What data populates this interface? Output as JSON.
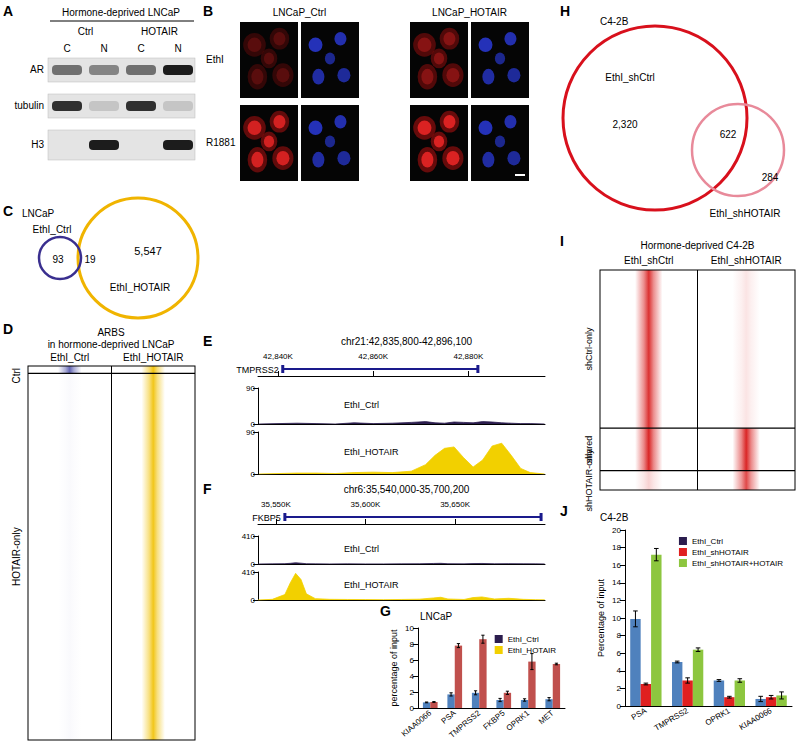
{
  "figure": {
    "panel_labels": [
      "A",
      "B",
      "C",
      "D",
      "E",
      "F",
      "G",
      "H",
      "I",
      "J"
    ],
    "blot": {
      "title": "Hormone-deprived LNCaP",
      "groups": [
        "Ctrl",
        "HOTAIR"
      ],
      "lanes": [
        "C",
        "N",
        "C",
        "N"
      ],
      "rows": [
        {
          "name": "AR",
          "bands": [
            0.55,
            0.45,
            0.55,
            0.95
          ]
        },
        {
          "name": "tubulin",
          "bands": [
            0.85,
            0.15,
            0.85,
            0.15
          ]
        },
        {
          "name": "H3",
          "bands": [
            0,
            0.95,
            0,
            0.95
          ]
        }
      ]
    },
    "microscopy": {
      "columns": [
        "LNCaP_Ctrl",
        "LNCaP_HOTAIR"
      ],
      "rows": [
        "EthI",
        "R1881"
      ]
    },
    "venn_lncap": {
      "title": "LNCaP",
      "sets": [
        "EthI_Ctrl",
        "EthI_HOTAIR"
      ],
      "counts": [
        {
          "value": 93,
          "label": "93"
        },
        {
          "value": 19,
          "label": "19"
        },
        {
          "value": 5547,
          "label": "5,547"
        }
      ]
    },
    "heatmap_lncap": {
      "title": [
        "ARBS",
        "in hormone-deprived LNCaP"
      ],
      "columns": [
        "EthI_Ctrl",
        "EthI_HOTAIR"
      ],
      "sections": [
        "Ctrl",
        "HOTAIR-only"
      ]
    },
    "venn_c42b": {
      "title": "C4-2B",
      "sets": [
        "EthI_shCtrl",
        "EthI_shHOTAIR"
      ],
      "counts": [
        {
          "value": 2320,
          "label": "2,320"
        },
        {
          "value": 622,
          "label": "622"
        },
        {
          "value": 284,
          "label": "284"
        }
      ]
    },
    "heatmap_c42b": {
      "title": "Hormone-deprived C4-2B",
      "columns": [
        "EthI_shCtrl",
        "EthI_shHOTAIR"
      ],
      "sections": [
        "shCtrl-only",
        "shared",
        "shHOTAIR-only"
      ]
    }
  },
  "chart_data": [
    {
      "type": "area",
      "title": "chr21:42,835,800-42,896,100",
      "xlim": [
        42835.8,
        42896.1
      ],
      "xticks": [
        {
          "value": 42840,
          "label": "42,840K"
        },
        {
          "value": 42860,
          "label": "42,860K"
        },
        {
          "value": 42880,
          "label": "42,880K"
        }
      ],
      "gene": {
        "name": "TMPRSS2",
        "start": 42841,
        "end": 42882
      },
      "x": [
        42836,
        42840,
        42844,
        42848,
        42852,
        42856,
        42860,
        42864,
        42868,
        42871,
        42873,
        42875,
        42877,
        42879,
        42881,
        42883,
        42885,
        42887,
        42889,
        42891,
        42893,
        42896
      ],
      "series": [
        {
          "name": "EthI_Ctrl",
          "color": "#2b1d4e",
          "values": [
            0,
            1,
            2,
            1,
            0,
            3,
            1,
            2,
            4,
            6,
            3,
            2,
            5,
            4,
            3,
            6,
            5,
            3,
            2,
            1,
            1,
            0
          ]
        },
        {
          "name": "EthI_HOTAIR",
          "color": "#f2d000",
          "values": [
            0,
            1,
            2,
            2,
            1,
            3,
            4,
            3,
            6,
            20,
            40,
            55,
            58,
            35,
            15,
            30,
            60,
            66,
            40,
            12,
            3,
            0
          ]
        }
      ],
      "ylim": [
        0,
        90
      ],
      "yticks": [
        0,
        90
      ]
    },
    {
      "type": "area",
      "title": "chr6:35,540,000-35,700,200",
      "xlim": [
        35540,
        35700.2
      ],
      "xticks": [
        {
          "value": 35550,
          "label": "35,550K"
        },
        {
          "value": 35600,
          "label": "35,600K"
        },
        {
          "value": 35650,
          "label": "35,650K"
        }
      ],
      "gene": {
        "name": "FKBP5",
        "start": 35555,
        "end": 35698
      },
      "x": [
        35540,
        35548,
        35555,
        35558,
        35561,
        35564,
        35567,
        35572,
        35580,
        35590,
        35600,
        35610,
        35620,
        35630,
        35638,
        35642,
        35646,
        35655,
        35660,
        35665,
        35672,
        35680,
        35688,
        35695,
        35700
      ],
      "series": [
        {
          "name": "EthI_Ctrl",
          "color": "#2b1d4e",
          "values": [
            0,
            2,
            5,
            10,
            18,
            12,
            4,
            2,
            1,
            2,
            1,
            1,
            2,
            3,
            8,
            10,
            4,
            2,
            6,
            8,
            3,
            5,
            3,
            2,
            1
          ]
        },
        {
          "name": "EthI_HOTAIR",
          "color": "#f2d000",
          "values": [
            0,
            10,
            80,
            250,
            390,
            300,
            90,
            20,
            10,
            8,
            6,
            5,
            8,
            12,
            30,
            40,
            15,
            8,
            35,
            45,
            15,
            25,
            10,
            5,
            2
          ]
        }
      ],
      "ylim": [
        0,
        410
      ],
      "yticks": [
        0,
        410
      ]
    },
    {
      "type": "bar",
      "title": "LNCaP",
      "categories": [
        "KIAA0066",
        "PSA",
        "TMPRSS2",
        "FKBP5",
        "OPRK1",
        "MET"
      ],
      "series": [
        {
          "name": "EthI_Ctrl",
          "color": "#4f81bd",
          "values": [
            0.7,
            1.7,
            1.9,
            1.0,
            1.0,
            1.1
          ],
          "errors": [
            0.05,
            0.2,
            0.25,
            0.2,
            0.15,
            0.2
          ]
        },
        {
          "name": "EthI_HOTAIR",
          "color": "#c0504d",
          "values": [
            0.75,
            7.8,
            8.6,
            1.9,
            5.8,
            5.5
          ],
          "errors": [
            0.05,
            0.25,
            0.5,
            0.2,
            1.0,
            0.1
          ]
        }
      ],
      "ylim": [
        0,
        10
      ],
      "yticks": [
        0,
        2,
        4,
        6,
        8,
        10
      ],
      "ylabel": "percentage of input",
      "legend": "top-right"
    },
    {
      "type": "bar",
      "title": "C4-2B",
      "categories": [
        "PSA",
        "TMPRSS2",
        "OPRK1",
        "KIAA0066"
      ],
      "series": [
        {
          "name": "EthI_Ctrl",
          "color": "#4f81bd",
          "values": [
            9.9,
            5.0,
            2.9,
            0.8
          ],
          "errors": [
            0.9,
            0.1,
            0.1,
            0.3
          ]
        },
        {
          "name": "EthI_shHOTAIR",
          "color": "#e02020",
          "values": [
            2.5,
            2.9,
            1.0,
            1.0
          ],
          "errors": [
            0.1,
            0.3,
            0.1,
            0.2
          ]
        },
        {
          "name": "EthI_shHOTAIR+HOTAIR",
          "color": "#8dc63f",
          "values": [
            17.2,
            6.4,
            2.9,
            1.2
          ],
          "errors": [
            0.7,
            0.2,
            0.2,
            0.4
          ]
        }
      ],
      "ylim": [
        0,
        20
      ],
      "yticks": [
        0,
        2,
        4,
        6,
        8,
        10,
        12,
        14,
        16,
        18,
        20
      ],
      "ylabel": "Percentage of input",
      "legend": "top-right"
    }
  ]
}
